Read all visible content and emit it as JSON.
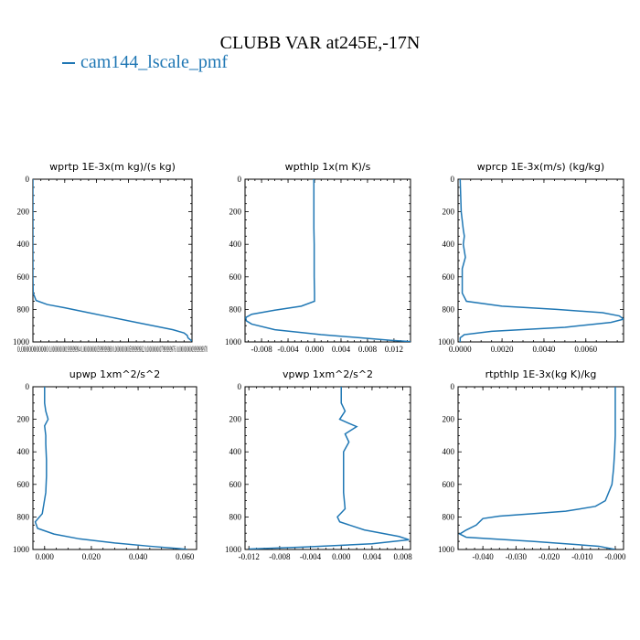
{
  "figure": {
    "title": "CLUBB VAR at245E,-17N",
    "legend": [
      {
        "label": "cam144_lscale_pmf",
        "color": "#1f77b4"
      }
    ]
  },
  "chart_data": [
    {
      "type": "line",
      "title": "wprtp  1E-3x(m kg)/(s kg)",
      "xlim": [
        0.0,
        9.99999997e-11
      ],
      "ylim": [
        1000,
        0
      ],
      "yticks": [
        0,
        200,
        400,
        600,
        800,
        1000
      ],
      "xticks": [
        0.0,
        1.999999994e-11,
        3.999999988e-11,
        5.999999982e-11,
        7.999999976e-11,
        9.99999997e-11
      ],
      "xtick_labels": [
        "0.00000000000",
        "0.00000000001999999994",
        "0.00000000003999999988",
        "0.00000000005999999982",
        "0.00000000007999999976",
        "0.00000000009999999970"
      ],
      "series": [
        {
          "color": "#1f77b4",
          "x": [
            0.0,
            0.0,
            0.0,
            0.0,
            0.0,
            0.0,
            0.0,
            2e-13,
            2e-12,
            9e-12,
            2e-11,
            3.5e-11,
            5e-11,
            6.5e-11,
            7.8e-11,
            8.8e-11,
            9.5e-11,
            9.7e-11,
            9.75e-11,
            9.99999997e-11
          ],
          "y": [
            0,
            100,
            200,
            300,
            400,
            500,
            600,
            700,
            745,
            770,
            790,
            820,
            850,
            880,
            905,
            925,
            945,
            960,
            975,
            995
          ]
        }
      ]
    },
    {
      "type": "line",
      "title": "wpthlp  1x(m K)/s",
      "xlim": [
        -0.0105,
        0.0145
      ],
      "ylim": [
        1000,
        0
      ],
      "yticks": [
        0,
        200,
        400,
        600,
        800,
        1000
      ],
      "xticks": [
        -0.008,
        -0.004,
        0.0,
        0.004,
        0.008,
        0.012
      ],
      "xtick_labels": [
        "-0.008",
        "-0.004",
        "0.000",
        "0.004",
        "0.008",
        "0.012"
      ],
      "series": [
        {
          "color": "#1f77b4",
          "x": [
            -0.0001,
            -0.0001,
            -0.0001,
            -0.0001,
            -5e-05,
            -5e-05,
            -5e-05,
            0.0,
            0.0,
            -0.002,
            -0.006,
            -0.0095,
            -0.0104,
            -0.0103,
            -0.0095,
            -0.006,
            0.001,
            0.007,
            0.0115,
            0.0145
          ],
          "y": [
            0,
            100,
            200,
            300,
            400,
            500,
            600,
            700,
            750,
            780,
            805,
            830,
            850,
            870,
            890,
            925,
            955,
            975,
            990,
            998
          ]
        }
      ]
    },
    {
      "type": "line",
      "title": "wprcp  1E-3x(m/s) (kg/kg)",
      "xlim": [
        -0.0001,
        0.0078
      ],
      "ylim": [
        1000,
        0
      ],
      "yticks": [
        0,
        200,
        400,
        600,
        800,
        1000
      ],
      "xticks": [
        0.0,
        0.002,
        0.004,
        0.006
      ],
      "xtick_labels": [
        "0.0000",
        "0.0020",
        "0.0040",
        "0.0060"
      ],
      "series": [
        {
          "color": "#1f77b4",
          "x": [
            0.0,
            5e-05,
            0.00015,
            0.0002,
            0.00015,
            0.00025,
            0.0001,
            0.0001,
            0.0003,
            0.002,
            0.0046,
            0.0068,
            0.0076,
            0.0078,
            0.0072,
            0.005,
            0.0015,
            0.0002,
            0.0,
            0.0
          ],
          "y": [
            0,
            200,
            310,
            350,
            400,
            480,
            550,
            700,
            750,
            780,
            800,
            820,
            840,
            860,
            880,
            910,
            935,
            955,
            975,
            1000
          ]
        }
      ]
    },
    {
      "type": "line",
      "title": "upwp  1xm^2/s^2",
      "xlim": [
        -0.005,
        0.065
      ],
      "ylim": [
        1000,
        0
      ],
      "yticks": [
        0,
        200,
        400,
        600,
        800,
        1000
      ],
      "xticks": [
        0.0,
        0.02,
        0.04,
        0.06
      ],
      "xtick_labels": [
        "0.000",
        "0.020",
        "0.040",
        "0.060"
      ],
      "series": [
        {
          "color": "#1f77b4",
          "x": [
            0.0,
            0.0,
            0.0005,
            0.0015,
            0.0,
            0.0005,
            0.0005,
            0.0008,
            0.0008,
            0.0005,
            -0.001,
            -0.004,
            -0.003,
            0.004,
            0.015,
            0.03,
            0.045,
            0.058,
            0.061
          ],
          "y": [
            0,
            100,
            150,
            200,
            240,
            300,
            350,
            450,
            550,
            650,
            780,
            830,
            870,
            905,
            935,
            960,
            980,
            995,
            1000
          ]
        }
      ]
    },
    {
      "type": "line",
      "title": "vpwp  1xm^2/s^2",
      "xlim": [
        -0.0125,
        0.009
      ],
      "ylim": [
        1000,
        0
      ],
      "yticks": [
        0,
        200,
        400,
        600,
        800,
        1000
      ],
      "xticks": [
        -0.012,
        -0.008,
        -0.004,
        0.0,
        0.004,
        0.008
      ],
      "xtick_labels": [
        "-0.012",
        "-0.008",
        "-0.004",
        "0.000",
        "0.004",
        "0.008"
      ],
      "series": [
        {
          "color": "#1f77b4",
          "x": [
            0.0,
            0.0,
            0.0005,
            -0.0002,
            0.001,
            0.002,
            0.0005,
            0.001,
            0.0003,
            0.0003,
            0.0003,
            0.0005,
            -0.0005,
            -0.0002,
            0.003,
            0.0075,
            0.0088,
            0.004,
            -0.005,
            -0.012
          ],
          "y": [
            0,
            100,
            150,
            200,
            225,
            245,
            290,
            340,
            400,
            500,
            650,
            750,
            800,
            830,
            880,
            920,
            940,
            965,
            985,
            997
          ]
        }
      ]
    },
    {
      "type": "line",
      "title": "rtpthlp  1E-3x(kg K)/kg",
      "xlim": [
        -0.0475,
        0.0025
      ],
      "ylim": [
        1000,
        0
      ],
      "yticks": [
        0,
        200,
        400,
        600,
        800,
        1000
      ],
      "xticks": [
        -0.04,
        -0.03,
        -0.02,
        -0.01,
        0.0
      ],
      "xtick_labels": [
        "-0.040",
        "-0.030",
        "-0.020",
        "-0.010",
        "-0.000"
      ],
      "series": [
        {
          "color": "#1f77b4",
          "x": [
            0.0,
            0.0,
            0.0,
            0.0,
            -0.0002,
            -0.0005,
            -0.001,
            -0.003,
            -0.006,
            -0.015,
            -0.025,
            -0.035,
            -0.04,
            -0.042,
            -0.045,
            -0.047,
            -0.045,
            -0.025,
            -0.005,
            0.0
          ],
          "y": [
            0,
            100,
            200,
            300,
            400,
            500,
            600,
            700,
            735,
            765,
            780,
            795,
            810,
            850,
            880,
            905,
            925,
            950,
            980,
            1000
          ]
        }
      ]
    }
  ]
}
